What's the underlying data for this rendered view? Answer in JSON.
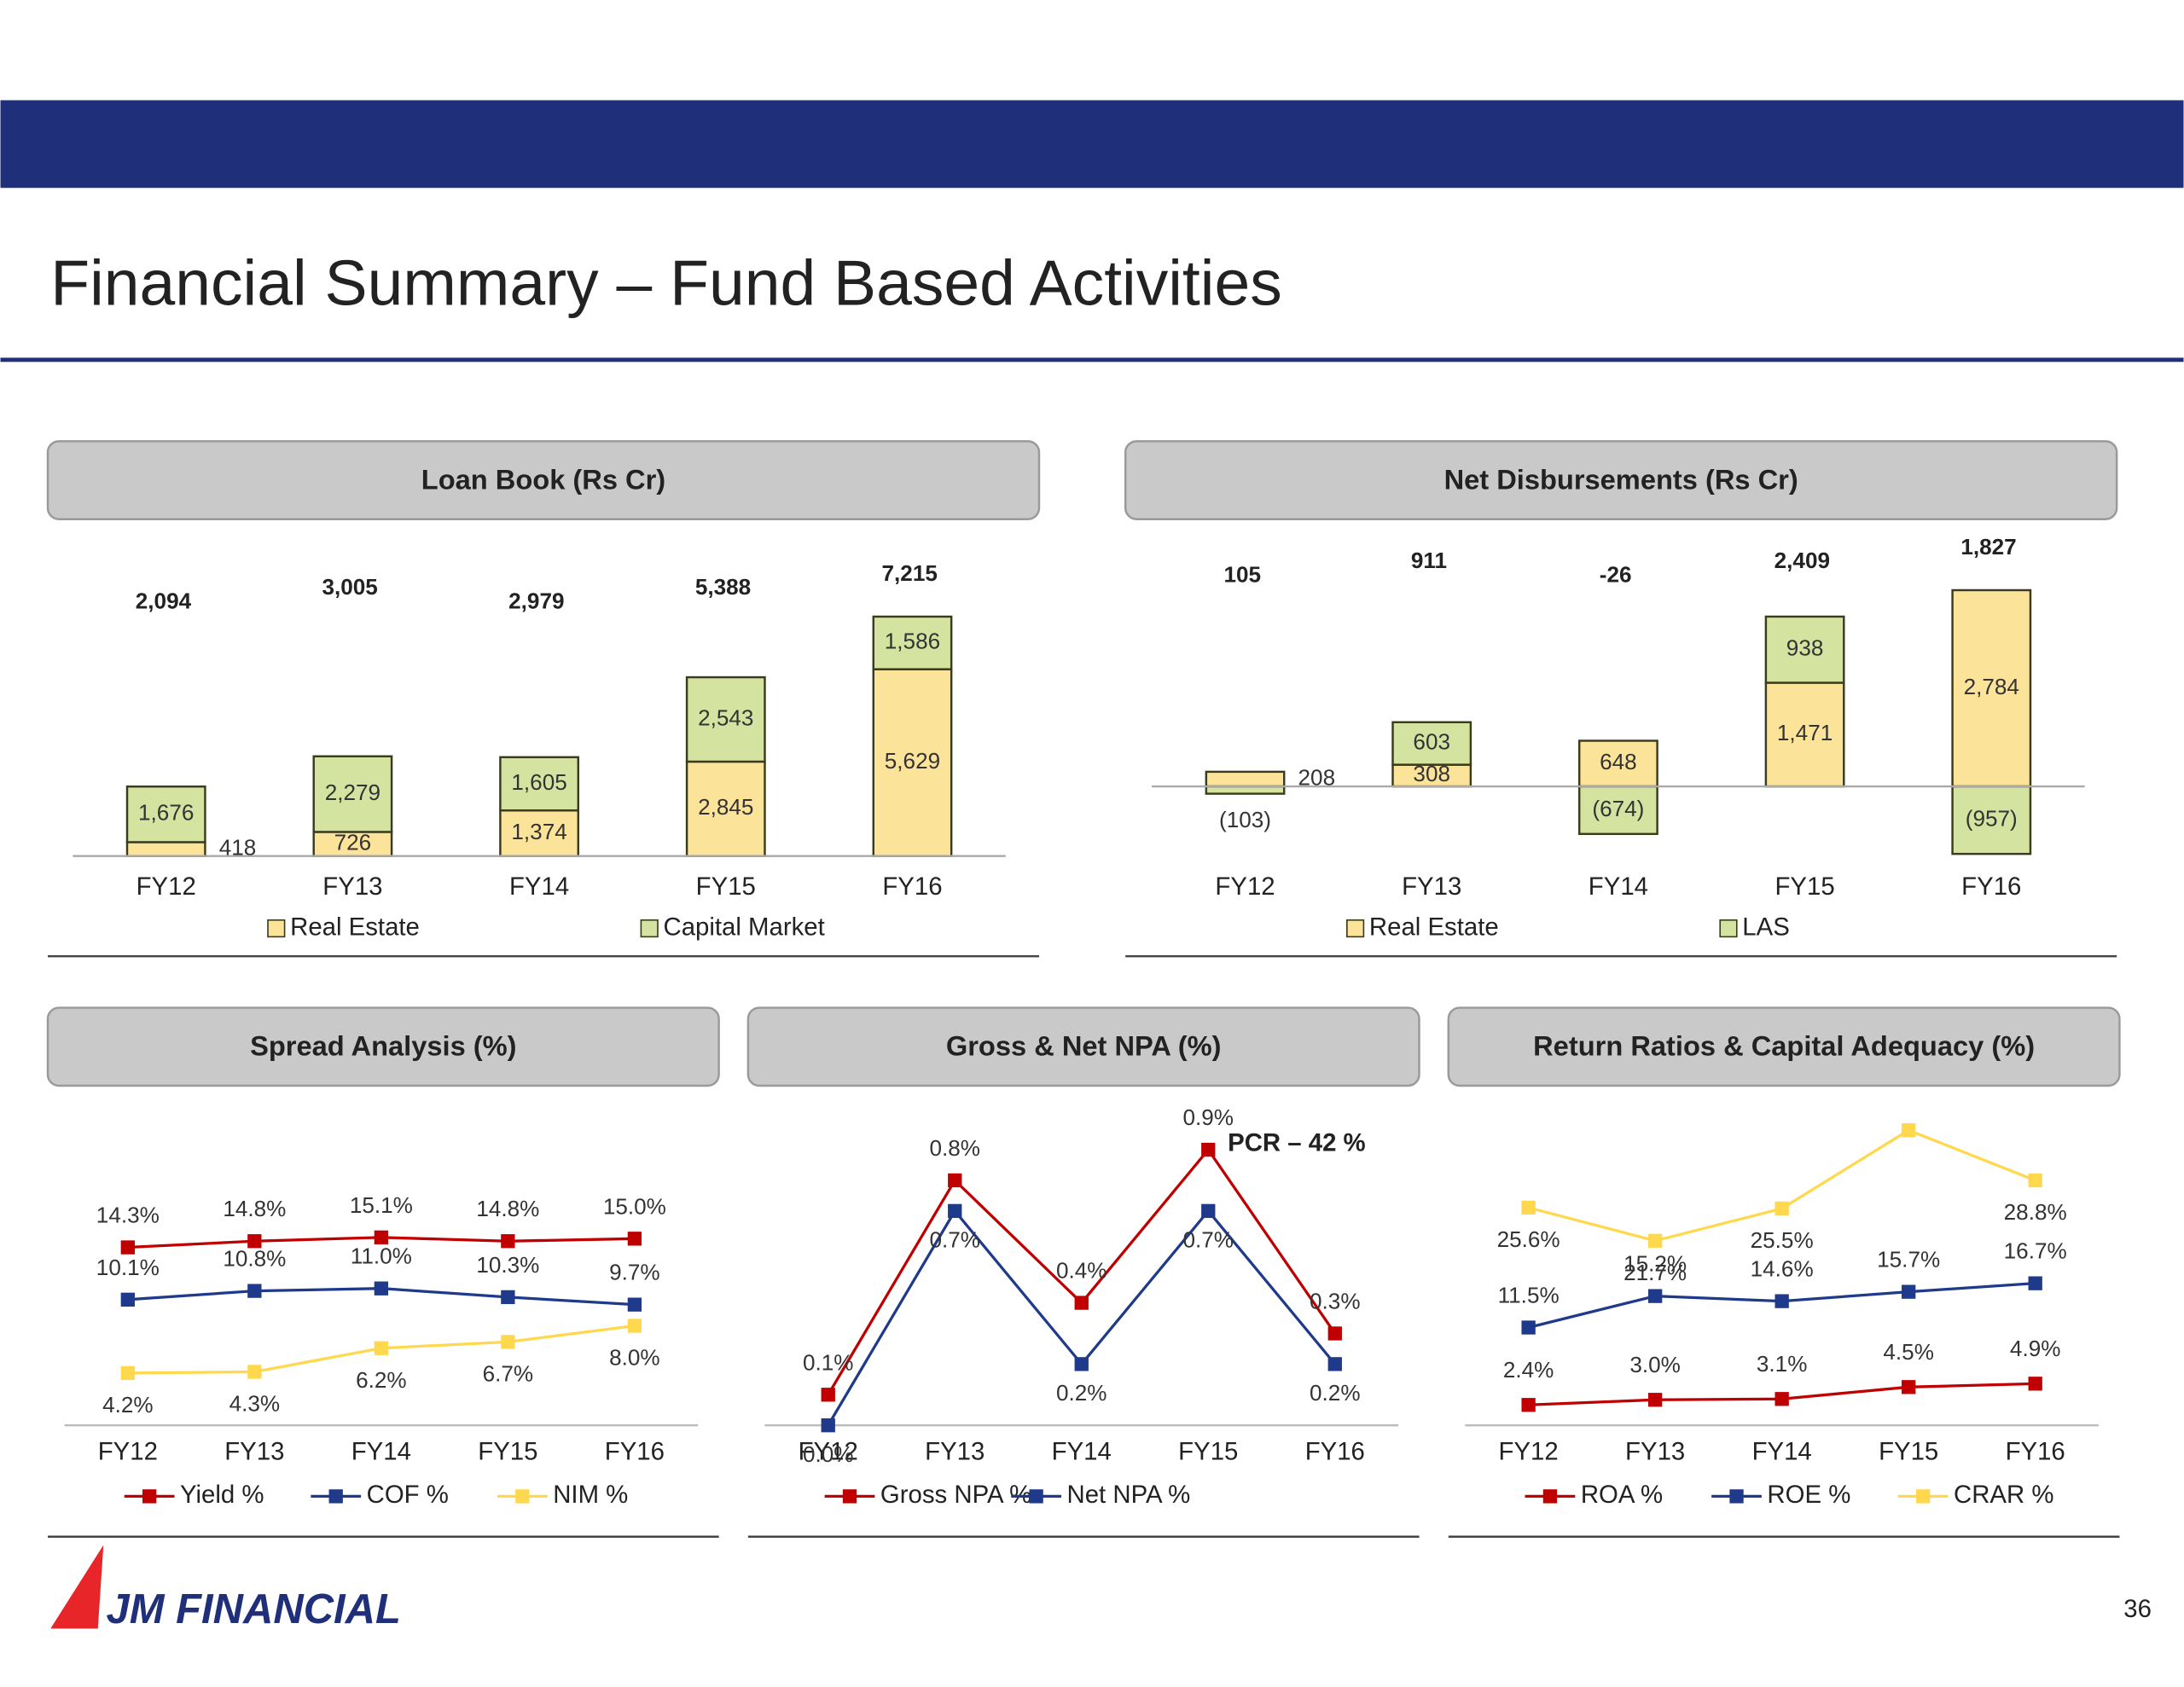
{
  "title": "Financial Summary – Fund Based Activities",
  "logo": "JM FINANCIAL",
  "page_number": "36",
  "chart_data": [
    {
      "type": "bar",
      "stacked": true,
      "title": "Loan Book (Rs Cr)",
      "categories": [
        "FY12",
        "FY13",
        "FY14",
        "FY15",
        "FY16"
      ],
      "series": [
        {
          "name": "Real Estate",
          "color": "#fce39a",
          "values": [
            418,
            726,
            1374,
            2845,
            5629
          ],
          "value_labels": [
            "418",
            "726",
            "1,374",
            "2,845",
            "5,629"
          ]
        },
        {
          "name": "Capital Market",
          "color": "#d5e3a1",
          "values": [
            1676,
            2279,
            1605,
            2543,
            1586
          ],
          "value_labels": [
            "1,676",
            "2,279",
            "1,605",
            "2,543",
            "1,586"
          ]
        }
      ],
      "totals": {
        "values": [
          2094,
          3005,
          2979,
          5388,
          7215
        ],
        "value_labels": [
          "2,094",
          "3,005",
          "2,979",
          "5,388",
          "7,215"
        ]
      }
    },
    {
      "type": "bar",
      "stacked": true,
      "title": "Net Disbursements (Rs Cr)",
      "categories": [
        "FY12",
        "FY13",
        "FY14",
        "FY15",
        "FY16"
      ],
      "series": [
        {
          "name": "Real Estate",
          "color": "#fce39a",
          "values": [
            208,
            308,
            648,
            1471,
            2784
          ],
          "value_labels": [
            "208",
            "308",
            "648",
            "1,471",
            "2,784"
          ]
        },
        {
          "name": "LAS",
          "color": "#d5e3a1",
          "values": [
            -103,
            603,
            -674,
            938,
            -957
          ],
          "value_labels": [
            "(103)",
            "603",
            "(674)",
            "938",
            "(957)"
          ]
        }
      ],
      "totals": {
        "values": [
          105,
          911,
          -26,
          2409,
          1827
        ],
        "value_labels": [
          "105",
          "911",
          "-26",
          "2,409",
          "1,827"
        ]
      }
    },
    {
      "type": "line",
      "title": "Spread Analysis (%)",
      "categories": [
        "FY12",
        "FY13",
        "FY14",
        "FY15",
        "FY16"
      ],
      "series": [
        {
          "name": "Yield %",
          "color": "#c00000",
          "values": [
            14.3,
            14.8,
            15.1,
            14.8,
            15.0
          ],
          "value_labels": [
            "14.3%",
            "14.8%",
            "15.1%",
            "14.8%",
            "15.0%"
          ]
        },
        {
          "name": "COF %",
          "color": "#1f3a8a",
          "values": [
            10.1,
            10.8,
            11.0,
            10.3,
            9.7
          ],
          "value_labels": [
            "10.1%",
            "10.8%",
            "11.0%",
            "10.3%",
            "9.7%"
          ]
        },
        {
          "name": "NIM %",
          "color": "#ffd84d",
          "values": [
            4.2,
            4.3,
            6.2,
            6.7,
            8.0
          ],
          "value_labels": [
            "4.2%",
            "4.3%",
            "6.2%",
            "6.7%",
            "8.0%"
          ]
        }
      ]
    },
    {
      "type": "line",
      "title": "Gross & Net NPA (%)",
      "categories": [
        "FY12",
        "FY13",
        "FY14",
        "FY15",
        "FY16"
      ],
      "series": [
        {
          "name": "Gross NPA %",
          "color": "#c00000",
          "values": [
            0.1,
            0.8,
            0.4,
            0.9,
            0.3
          ],
          "value_labels": [
            "0.1%",
            "0.8%",
            "0.4%",
            "0.9%",
            "0.3%"
          ]
        },
        {
          "name": "Net NPA %",
          "color": "#1f3a8a",
          "values": [
            0.0,
            0.7,
            0.2,
            0.7,
            0.2
          ],
          "value_labels": [
            "0.0%",
            "0.7%",
            "0.2%",
            "0.7%",
            "0.2%"
          ]
        }
      ],
      "annotation": "PCR – 42 %"
    },
    {
      "type": "line",
      "title": "Return Ratios & Capital Adequacy (%)",
      "categories": [
        "FY12",
        "FY13",
        "FY14",
        "FY15",
        "FY16"
      ],
      "series": [
        {
          "name": "ROA %",
          "color": "#c00000",
          "values": [
            2.4,
            3.0,
            3.1,
            4.5,
            4.9
          ],
          "value_labels": [
            "2.4%",
            "3.0%",
            "3.1%",
            "4.5%",
            "4.9%"
          ]
        },
        {
          "name": "ROE %",
          "color": "#1f3a8a",
          "values": [
            11.5,
            15.2,
            14.6,
            15.7,
            16.7
          ],
          "value_labels": [
            "11.5%",
            "15.2%",
            "14.6%",
            "15.7%",
            "16.7%"
          ]
        },
        {
          "name": "CRAR %",
          "color": "#ffd84d",
          "values": [
            25.6,
            21.7,
            25.5,
            34.7,
            28.8
          ],
          "value_labels": [
            "25.6%",
            "21.7%",
            "25.5%",
            null,
            "28.8%"
          ]
        }
      ]
    }
  ]
}
